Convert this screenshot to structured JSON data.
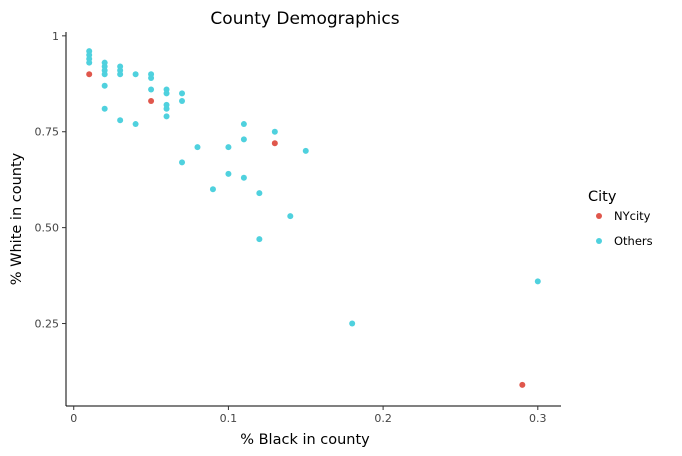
{
  "chart_data": {
    "type": "scatter",
    "title": "County Demographics",
    "xlabel": "% Black in county",
    "ylabel": "% White in county",
    "xlim": [
      -0.005,
      0.315
    ],
    "ylim": [
      0.035,
      1.01
    ],
    "x_ticks": [
      0,
      0.1,
      0.2,
      0.3
    ],
    "x_tick_labels": [
      "0",
      "0.1",
      "0.2",
      "0.3"
    ],
    "y_ticks": [
      0.25,
      0.5,
      0.75,
      1
    ],
    "y_tick_labels": [
      "0.25",
      "0.50",
      "0.75",
      "1"
    ],
    "grid": false,
    "legend": {
      "title": "City",
      "position": "right",
      "entries": [
        {
          "label": "NYcity",
          "color": "#e0574c"
        },
        {
          "label": "Others",
          "color": "#4fd1de"
        }
      ]
    },
    "series": [
      {
        "name": "NYcity",
        "color": "#e0574c",
        "points": [
          {
            "x": 0.01,
            "y": 0.9
          },
          {
            "x": 0.05,
            "y": 0.83
          },
          {
            "x": 0.13,
            "y": 0.72
          },
          {
            "x": 0.29,
            "y": 0.09
          }
        ]
      },
      {
        "name": "Others",
        "color": "#4fd1de",
        "points": [
          {
            "x": 0.01,
            "y": 0.96
          },
          {
            "x": 0.01,
            "y": 0.95
          },
          {
            "x": 0.01,
            "y": 0.94
          },
          {
            "x": 0.01,
            "y": 0.93
          },
          {
            "x": 0.02,
            "y": 0.93
          },
          {
            "x": 0.02,
            "y": 0.92
          },
          {
            "x": 0.02,
            "y": 0.91
          },
          {
            "x": 0.02,
            "y": 0.9
          },
          {
            "x": 0.02,
            "y": 0.87
          },
          {
            "x": 0.02,
            "y": 0.81
          },
          {
            "x": 0.03,
            "y": 0.92
          },
          {
            "x": 0.03,
            "y": 0.91
          },
          {
            "x": 0.03,
            "y": 0.9
          },
          {
            "x": 0.03,
            "y": 0.78
          },
          {
            "x": 0.04,
            "y": 0.9
          },
          {
            "x": 0.04,
            "y": 0.77
          },
          {
            "x": 0.05,
            "y": 0.9
          },
          {
            "x": 0.05,
            "y": 0.89
          },
          {
            "x": 0.05,
            "y": 0.86
          },
          {
            "x": 0.06,
            "y": 0.86
          },
          {
            "x": 0.06,
            "y": 0.85
          },
          {
            "x": 0.06,
            "y": 0.82
          },
          {
            "x": 0.06,
            "y": 0.81
          },
          {
            "x": 0.06,
            "y": 0.79
          },
          {
            "x": 0.07,
            "y": 0.85
          },
          {
            "x": 0.07,
            "y": 0.83
          },
          {
            "x": 0.07,
            "y": 0.67
          },
          {
            "x": 0.08,
            "y": 0.71
          },
          {
            "x": 0.09,
            "y": 0.6
          },
          {
            "x": 0.1,
            "y": 0.71
          },
          {
            "x": 0.1,
            "y": 0.64
          },
          {
            "x": 0.11,
            "y": 0.77
          },
          {
            "x": 0.11,
            "y": 0.73
          },
          {
            "x": 0.11,
            "y": 0.63
          },
          {
            "x": 0.12,
            "y": 0.59
          },
          {
            "x": 0.12,
            "y": 0.47
          },
          {
            "x": 0.13,
            "y": 0.75
          },
          {
            "x": 0.14,
            "y": 0.53
          },
          {
            "x": 0.15,
            "y": 0.7
          },
          {
            "x": 0.18,
            "y": 0.25
          },
          {
            "x": 0.3,
            "y": 0.36
          }
        ]
      }
    ]
  }
}
